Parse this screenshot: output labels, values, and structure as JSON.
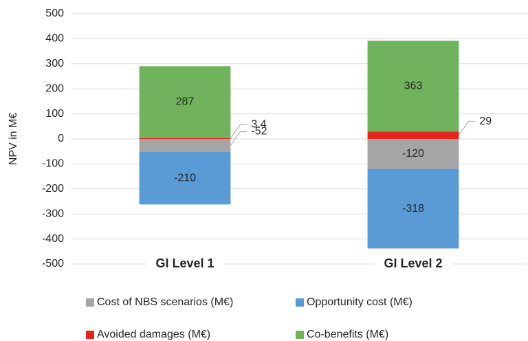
{
  "chart_data": {
    "type": "bar",
    "stacked": true,
    "y_label": "NPV in M€",
    "categories": [
      "GI Level 1",
      "GI Level 2"
    ],
    "series": [
      {
        "name": "Cost of NBS scenarios (M€)",
        "color": "#a5a5a5",
        "values": [
          -52,
          -120
        ]
      },
      {
        "name": "Opportunity cost (M€)",
        "color": "#5b9bd5",
        "values": [
          -210,
          -318
        ]
      },
      {
        "name": "Avoided damages (M€)",
        "color": "#e3261f",
        "values": [
          3.4,
          29
        ]
      },
      {
        "name": "Co-benefits (M€)",
        "color": "#70b35c",
        "values": [
          287,
          363
        ]
      }
    ],
    "ylim": [
      -500,
      500
    ],
    "yticks": [
      -500,
      -400,
      -300,
      -200,
      -100,
      0,
      100,
      200,
      300,
      400,
      500
    ],
    "grid": true,
    "legend": "bottom"
  }
}
